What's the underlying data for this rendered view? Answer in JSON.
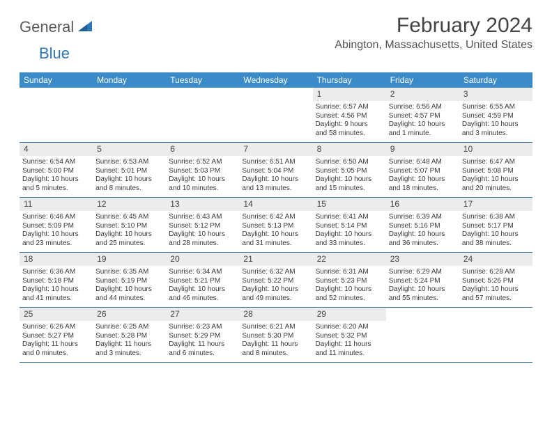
{
  "brand": {
    "word1": "General",
    "word2": "Blue",
    "logo_color": "#2e75b6"
  },
  "title": "February 2024",
  "location": "Abington, Massachusetts, United States",
  "colors": {
    "header_bg": "#3b8bc9",
    "header_text": "#ffffff",
    "daynum_bg": "#ececec",
    "week_border": "#3b6fa0"
  },
  "dow": [
    "Sunday",
    "Monday",
    "Tuesday",
    "Wednesday",
    "Thursday",
    "Friday",
    "Saturday"
  ],
  "weeks": [
    [
      null,
      null,
      null,
      null,
      {
        "n": "1",
        "sunrise": "Sunrise: 6:57 AM",
        "sunset": "Sunset: 4:56 PM",
        "day1": "Daylight: 9 hours",
        "day2": "and 58 minutes."
      },
      {
        "n": "2",
        "sunrise": "Sunrise: 6:56 AM",
        "sunset": "Sunset: 4:57 PM",
        "day1": "Daylight: 10 hours",
        "day2": "and 1 minute."
      },
      {
        "n": "3",
        "sunrise": "Sunrise: 6:55 AM",
        "sunset": "Sunset: 4:59 PM",
        "day1": "Daylight: 10 hours",
        "day2": "and 3 minutes."
      }
    ],
    [
      {
        "n": "4",
        "sunrise": "Sunrise: 6:54 AM",
        "sunset": "Sunset: 5:00 PM",
        "day1": "Daylight: 10 hours",
        "day2": "and 5 minutes."
      },
      {
        "n": "5",
        "sunrise": "Sunrise: 6:53 AM",
        "sunset": "Sunset: 5:01 PM",
        "day1": "Daylight: 10 hours",
        "day2": "and 8 minutes."
      },
      {
        "n": "6",
        "sunrise": "Sunrise: 6:52 AM",
        "sunset": "Sunset: 5:03 PM",
        "day1": "Daylight: 10 hours",
        "day2": "and 10 minutes."
      },
      {
        "n": "7",
        "sunrise": "Sunrise: 6:51 AM",
        "sunset": "Sunset: 5:04 PM",
        "day1": "Daylight: 10 hours",
        "day2": "and 13 minutes."
      },
      {
        "n": "8",
        "sunrise": "Sunrise: 6:50 AM",
        "sunset": "Sunset: 5:05 PM",
        "day1": "Daylight: 10 hours",
        "day2": "and 15 minutes."
      },
      {
        "n": "9",
        "sunrise": "Sunrise: 6:48 AM",
        "sunset": "Sunset: 5:07 PM",
        "day1": "Daylight: 10 hours",
        "day2": "and 18 minutes."
      },
      {
        "n": "10",
        "sunrise": "Sunrise: 6:47 AM",
        "sunset": "Sunset: 5:08 PM",
        "day1": "Daylight: 10 hours",
        "day2": "and 20 minutes."
      }
    ],
    [
      {
        "n": "11",
        "sunrise": "Sunrise: 6:46 AM",
        "sunset": "Sunset: 5:09 PM",
        "day1": "Daylight: 10 hours",
        "day2": "and 23 minutes."
      },
      {
        "n": "12",
        "sunrise": "Sunrise: 6:45 AM",
        "sunset": "Sunset: 5:10 PM",
        "day1": "Daylight: 10 hours",
        "day2": "and 25 minutes."
      },
      {
        "n": "13",
        "sunrise": "Sunrise: 6:43 AM",
        "sunset": "Sunset: 5:12 PM",
        "day1": "Daylight: 10 hours",
        "day2": "and 28 minutes."
      },
      {
        "n": "14",
        "sunrise": "Sunrise: 6:42 AM",
        "sunset": "Sunset: 5:13 PM",
        "day1": "Daylight: 10 hours",
        "day2": "and 31 minutes."
      },
      {
        "n": "15",
        "sunrise": "Sunrise: 6:41 AM",
        "sunset": "Sunset: 5:14 PM",
        "day1": "Daylight: 10 hours",
        "day2": "and 33 minutes."
      },
      {
        "n": "16",
        "sunrise": "Sunrise: 6:39 AM",
        "sunset": "Sunset: 5:16 PM",
        "day1": "Daylight: 10 hours",
        "day2": "and 36 minutes."
      },
      {
        "n": "17",
        "sunrise": "Sunrise: 6:38 AM",
        "sunset": "Sunset: 5:17 PM",
        "day1": "Daylight: 10 hours",
        "day2": "and 38 minutes."
      }
    ],
    [
      {
        "n": "18",
        "sunrise": "Sunrise: 6:36 AM",
        "sunset": "Sunset: 5:18 PM",
        "day1": "Daylight: 10 hours",
        "day2": "and 41 minutes."
      },
      {
        "n": "19",
        "sunrise": "Sunrise: 6:35 AM",
        "sunset": "Sunset: 5:19 PM",
        "day1": "Daylight: 10 hours",
        "day2": "and 44 minutes."
      },
      {
        "n": "20",
        "sunrise": "Sunrise: 6:34 AM",
        "sunset": "Sunset: 5:21 PM",
        "day1": "Daylight: 10 hours",
        "day2": "and 46 minutes."
      },
      {
        "n": "21",
        "sunrise": "Sunrise: 6:32 AM",
        "sunset": "Sunset: 5:22 PM",
        "day1": "Daylight: 10 hours",
        "day2": "and 49 minutes."
      },
      {
        "n": "22",
        "sunrise": "Sunrise: 6:31 AM",
        "sunset": "Sunset: 5:23 PM",
        "day1": "Daylight: 10 hours",
        "day2": "and 52 minutes."
      },
      {
        "n": "23",
        "sunrise": "Sunrise: 6:29 AM",
        "sunset": "Sunset: 5:24 PM",
        "day1": "Daylight: 10 hours",
        "day2": "and 55 minutes."
      },
      {
        "n": "24",
        "sunrise": "Sunrise: 6:28 AM",
        "sunset": "Sunset: 5:26 PM",
        "day1": "Daylight: 10 hours",
        "day2": "and 57 minutes."
      }
    ],
    [
      {
        "n": "25",
        "sunrise": "Sunrise: 6:26 AM",
        "sunset": "Sunset: 5:27 PM",
        "day1": "Daylight: 11 hours",
        "day2": "and 0 minutes."
      },
      {
        "n": "26",
        "sunrise": "Sunrise: 6:25 AM",
        "sunset": "Sunset: 5:28 PM",
        "day1": "Daylight: 11 hours",
        "day2": "and 3 minutes."
      },
      {
        "n": "27",
        "sunrise": "Sunrise: 6:23 AM",
        "sunset": "Sunset: 5:29 PM",
        "day1": "Daylight: 11 hours",
        "day2": "and 6 minutes."
      },
      {
        "n": "28",
        "sunrise": "Sunrise: 6:21 AM",
        "sunset": "Sunset: 5:30 PM",
        "day1": "Daylight: 11 hours",
        "day2": "and 8 minutes."
      },
      {
        "n": "29",
        "sunrise": "Sunrise: 6:20 AM",
        "sunset": "Sunset: 5:32 PM",
        "day1": "Daylight: 11 hours",
        "day2": "and 11 minutes."
      },
      null,
      null
    ]
  ]
}
